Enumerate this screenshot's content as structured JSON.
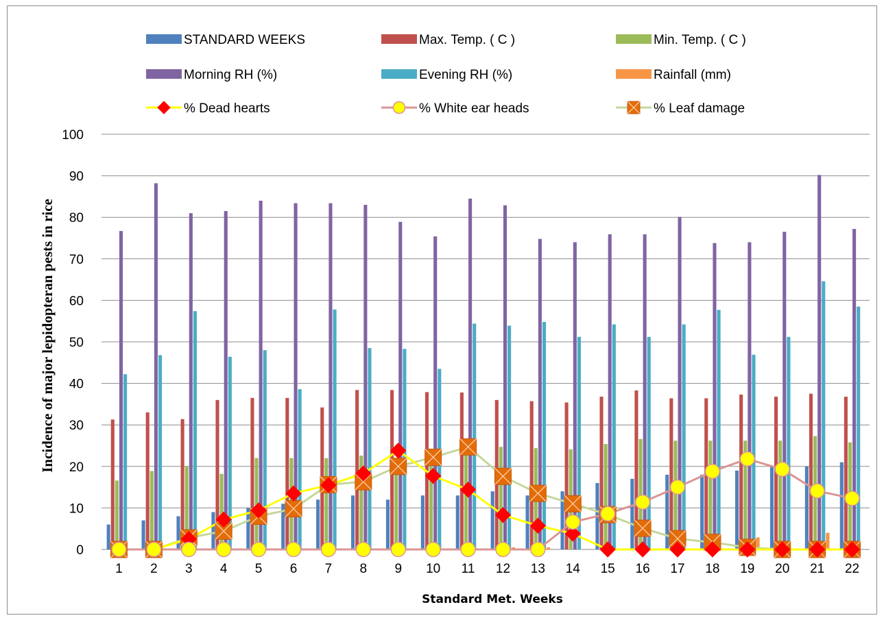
{
  "chart_data": {
    "type": "bar",
    "title": "",
    "xlabel": "Standard Met. Weeks",
    "ylabel": "Incidence of major lepidopteran pests in rice",
    "ylim": [
      0,
      100
    ],
    "yticks": [
      0,
      10,
      20,
      30,
      40,
      50,
      60,
      70,
      80,
      90,
      100
    ],
    "grid": true,
    "legend_position": "top",
    "categories": [
      "1",
      "2",
      "3",
      "4",
      "5",
      "6",
      "7",
      "8",
      "9",
      "10",
      "11",
      "12",
      "13",
      "14",
      "15",
      "16",
      "17",
      "18",
      "19",
      "20",
      "21",
      "22"
    ],
    "bar_series": [
      {
        "name": "STANDARD WEEKS",
        "color": "#4f81bd",
        "values": [
          6,
          7,
          8,
          9,
          10,
          11,
          12,
          13,
          12,
          13,
          13,
          14,
          13,
          14,
          16,
          17,
          18,
          18,
          19,
          20,
          20,
          21
        ]
      },
      {
        "name": "Max. Temp. ( C )",
        "color": "#c0504d",
        "values": [
          31.3,
          33.0,
          31.4,
          36.0,
          36.5,
          36.5,
          34.2,
          38.4,
          38.4,
          37.9,
          37.8,
          36.0,
          35.7,
          35.4,
          36.8,
          38.3,
          36.4,
          36.4,
          37.3,
          36.8,
          37.5,
          36.8
        ]
      },
      {
        "name": "Min. Temp. ( C )",
        "color": "#9bbb59",
        "values": [
          16.6,
          18.9,
          20.1,
          18.2,
          22.0,
          22.0,
          22.0,
          22.6,
          19.6,
          20.8,
          23.0,
          24.7,
          24.4,
          24.1,
          25.4,
          26.6,
          26.2,
          26.2,
          26.2,
          26.2,
          27.3,
          25.8
        ]
      },
      {
        "name": "Morning RH (%)",
        "color": "#8064a2",
        "values": [
          76.7,
          88.2,
          81.0,
          81.5,
          84.0,
          83.4,
          83.4,
          83.0,
          78.9,
          75.4,
          84.5,
          82.9,
          74.8,
          74.0,
          75.9,
          75.9,
          80.1,
          73.8,
          74.0,
          76.5,
          90.2,
          77.2
        ]
      },
      {
        "name": "Evening RH (%)",
        "color": "#4bacc6",
        "values": [
          42.2,
          46.8,
          57.4,
          46.4,
          48.0,
          38.6,
          57.8,
          48.5,
          48.3,
          43.5,
          54.4,
          53.9,
          54.8,
          51.2,
          54.2,
          51.2,
          54.2,
          57.7,
          46.9,
          51.2,
          64.6,
          58.5
        ]
      },
      {
        "name": "Rainfall (mm)",
        "color": "#f79646",
        "values": [
          0,
          0,
          0,
          0,
          0,
          0,
          0,
          0,
          0,
          0,
          0,
          0.5,
          0.5,
          0,
          0,
          0,
          0,
          0,
          2.9,
          0,
          4.0,
          0
        ]
      }
    ],
    "line_series": [
      {
        "name": "% Dead hearts",
        "color": "#ffff00",
        "marker": "diamond",
        "marker_color": "#ff0000",
        "values": [
          0,
          0,
          2.5,
          7.2,
          9.4,
          13.5,
          15.5,
          18.3,
          23.8,
          17.7,
          14.4,
          8.3,
          5.7,
          3.8,
          0,
          0,
          0,
          0,
          0,
          0,
          0,
          0
        ]
      },
      {
        "name": "% White ear heads",
        "color": "#d99594",
        "marker": "circle",
        "marker_color": "#ffff00",
        "values": [
          0,
          0,
          0,
          0,
          0,
          0,
          0,
          0,
          0,
          0,
          0,
          0,
          0,
          6.6,
          8.6,
          11.4,
          15.0,
          18.8,
          21.8,
          19.3,
          14.1,
          12.3
        ]
      },
      {
        "name": "% Leaf damage",
        "color": "#c4d79b",
        "marker": "square-x",
        "marker_color": "#e36c09",
        "values": [
          0,
          0,
          2.8,
          4.4,
          8.0,
          9.8,
          15.6,
          16.3,
          20.0,
          22.2,
          24.7,
          17.6,
          13.5,
          11.0,
          8.4,
          5.1,
          2.6,
          1.7,
          0.5,
          0,
          0,
          0
        ]
      }
    ]
  }
}
